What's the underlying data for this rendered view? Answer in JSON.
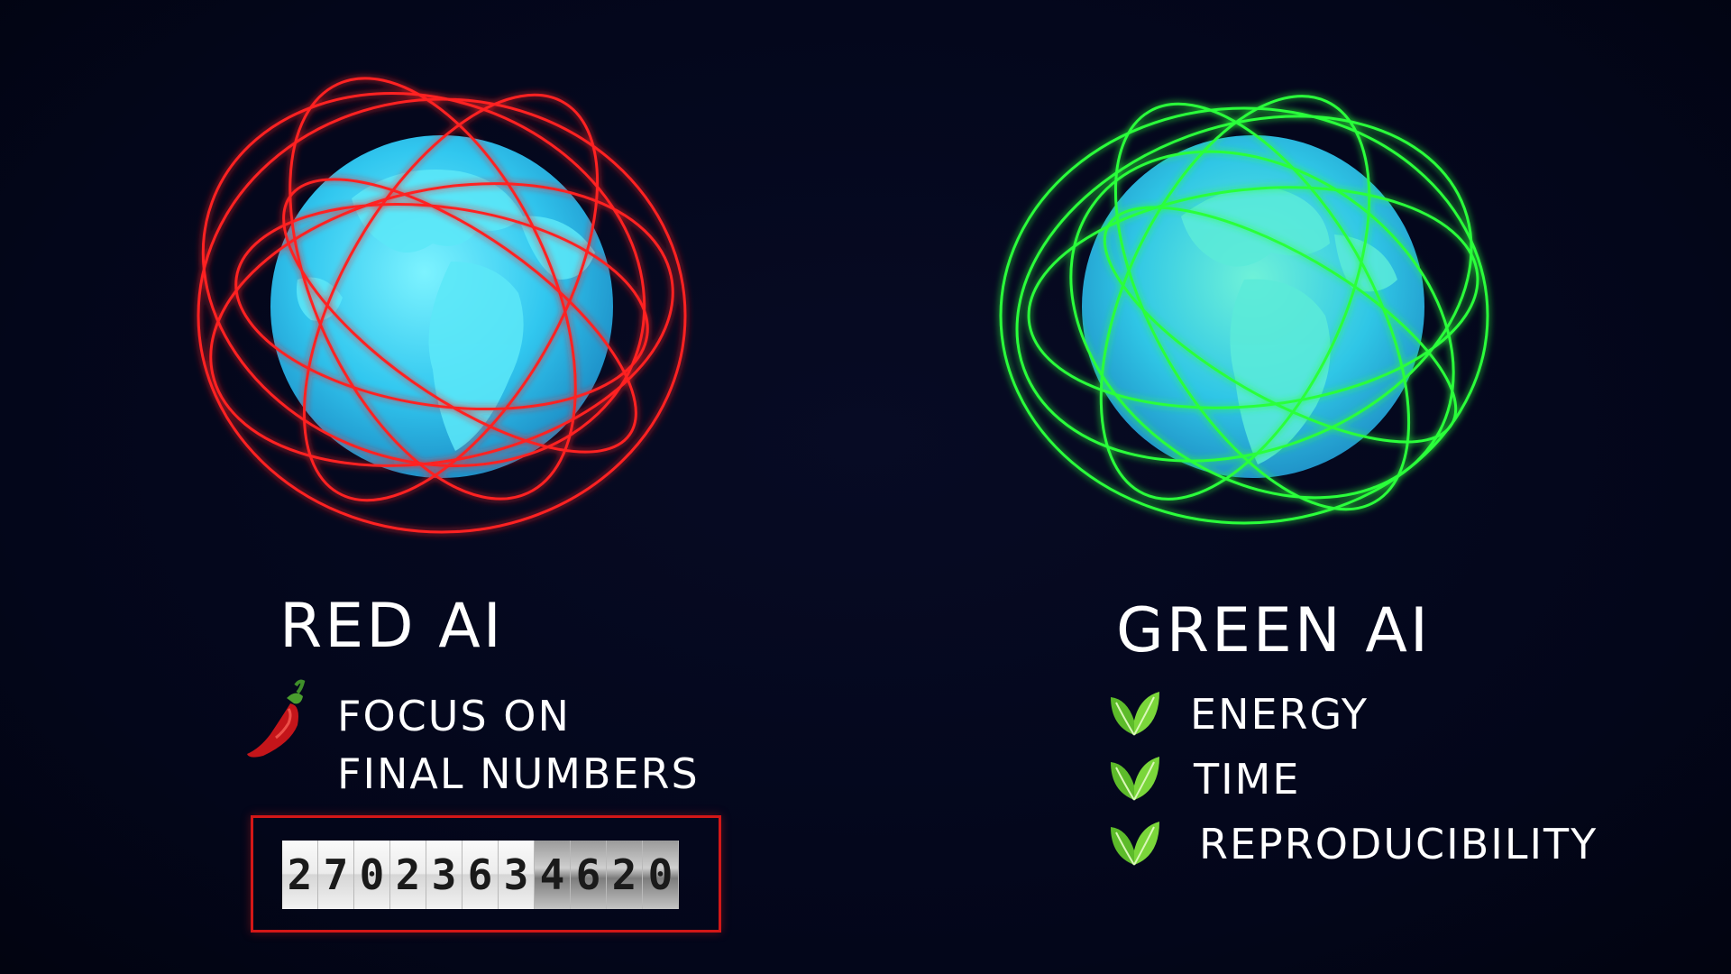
{
  "colors": {
    "background": "#03061a",
    "red_orbit": "#ff2020",
    "green_orbit": "#2bff3a",
    "globe_ocean": "#2ab8e8",
    "globe_land": "#49dff2",
    "counter_border": "#d31717"
  },
  "red_panel": {
    "title": "RED AI",
    "icon": "chili-pepper-icon",
    "point_line1": "FOCUS ON",
    "point_line2": "FINAL NUMBERS",
    "counter_digits": [
      "2",
      "7",
      "0",
      "2",
      "3",
      "6",
      "3",
      "4",
      "6",
      "2",
      "0"
    ]
  },
  "green_panel": {
    "title": "GREEN AI",
    "items": [
      {
        "icon": "leaf-icon",
        "label": "ENERGY"
      },
      {
        "icon": "leaf-icon",
        "label": "TIME"
      },
      {
        "icon": "leaf-icon",
        "label": "REPRODUCIBILITY"
      }
    ]
  }
}
